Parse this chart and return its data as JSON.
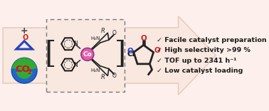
{
  "bg_color": "#fdf0ec",
  "arrow_color": "#f8e8e0",
  "arrow_edge_color": "#e8ccc0",
  "bullet_points": [
    "✓ Facile catalyst preparation",
    "✓ High selectivity >99 %",
    "✓ TOF up to 2341 h⁻¹",
    "✓ Low catalyst loading"
  ],
  "bullet_color": "#1a1a1a",
  "bullet_fontsize": 6.8,
  "epoxide_color": "#2244bb",
  "epoxide_O_color": "#cc2222",
  "co2_text_color": "#dd1111",
  "co2_globe_green": "#33aa33",
  "co2_globe_blue": "#2266cc",
  "cobalt_box_color": "#777777",
  "cobalt_pink": "#e060aa",
  "carbonate_O_color": "#cc2222",
  "carbonate_blue": "#2244cc",
  "bond_color": "#222222",
  "ring_color": "#111111"
}
